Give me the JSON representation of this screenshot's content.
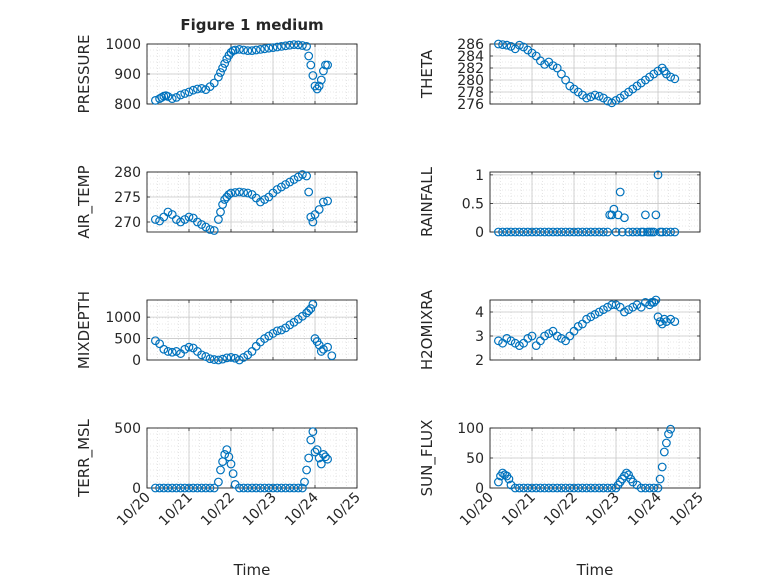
{
  "figure": {
    "title": "Figure 1 medium",
    "xlabel": "Time"
  },
  "x_ticks": [
    "10/20",
    "10/21",
    "10/22",
    "10/23",
    "10/24",
    "10/25"
  ],
  "marker_color": "#0072BD",
  "chart_data": [
    {
      "type": "scatter",
      "ylabel": "PRESSURE",
      "xlim": [
        0,
        5
      ],
      "ylim": [
        800,
        1000
      ],
      "yticks": [
        "800",
        "900",
        "1000"
      ],
      "xtick_labels": false,
      "minor_grid": true,
      "series": [
        {
          "x": [
            0.2,
            0.3,
            0.35,
            0.4,
            0.45,
            0.5,
            0.6,
            0.7,
            0.8,
            0.9,
            1.0,
            1.1,
            1.2,
            1.3,
            1.4,
            1.5,
            1.6,
            1.7,
            1.75,
            1.8,
            1.85,
            1.9,
            1.95,
            2.0,
            2.05,
            2.1,
            2.2,
            2.3,
            2.4,
            2.5,
            2.6,
            2.7,
            2.8,
            2.9,
            3.0,
            3.1,
            3.2,
            3.3,
            3.4,
            3.5,
            3.6,
            3.7,
            3.8,
            3.85,
            3.9,
            3.95,
            4.0,
            4.05,
            4.1,
            4.15,
            4.2,
            4.25,
            4.3
          ],
          "y": [
            812,
            818,
            822,
            826,
            828,
            825,
            818,
            822,
            830,
            835,
            840,
            846,
            850,
            852,
            848,
            858,
            870,
            890,
            905,
            920,
            935,
            950,
            962,
            972,
            978,
            980,
            982,
            980,
            978,
            978,
            980,
            982,
            984,
            986,
            988,
            990,
            992,
            994,
            996,
            998,
            997,
            995,
            992,
            960,
            930,
            895,
            860,
            850,
            860,
            880,
            910,
            930,
            930
          ]
        }
      ]
    },
    {
      "type": "scatter",
      "ylabel": "THETA",
      "xlim": [
        0,
        5
      ],
      "ylim": [
        276,
        286
      ],
      "yticks": [
        "276",
        "278",
        "280",
        "282",
        "284",
        "286"
      ],
      "xtick_labels": false,
      "minor_grid": true,
      "series": [
        {
          "x": [
            0.2,
            0.3,
            0.4,
            0.5,
            0.6,
            0.7,
            0.8,
            0.9,
            1.0,
            1.1,
            1.2,
            1.3,
            1.4,
            1.5,
            1.6,
            1.7,
            1.8,
            1.9,
            2.0,
            2.1,
            2.2,
            2.3,
            2.4,
            2.5,
            2.6,
            2.7,
            2.8,
            2.9,
            3.0,
            3.1,
            3.2,
            3.3,
            3.4,
            3.5,
            3.6,
            3.7,
            3.8,
            3.9,
            4.0,
            4.1,
            4.15,
            4.2,
            4.3,
            4.4
          ],
          "y": [
            286.0,
            285.9,
            285.8,
            285.6,
            285.2,
            285.8,
            285.5,
            285.0,
            284.5,
            284.0,
            283.2,
            282.6,
            283.0,
            282.4,
            282.0,
            281.0,
            280.0,
            279.0,
            278.5,
            278.0,
            277.5,
            277.0,
            277.2,
            277.5,
            277.3,
            277.0,
            276.5,
            276.2,
            276.6,
            277.0,
            277.5,
            278.0,
            278.5,
            279.0,
            279.5,
            280.0,
            280.5,
            281.0,
            281.5,
            282.0,
            281.5,
            281.0,
            280.5,
            280.2
          ]
        }
      ]
    },
    {
      "type": "scatter",
      "ylabel": "AIR_TEMP",
      "xlim": [
        0,
        5
      ],
      "ylim": [
        268,
        280
      ],
      "yticks": [
        "270",
        "275",
        "280"
      ],
      "xtick_labels": false,
      "minor_grid": true,
      "series": [
        {
          "x": [
            0.2,
            0.3,
            0.4,
            0.5,
            0.6,
            0.7,
            0.8,
            0.9,
            1.0,
            1.1,
            1.2,
            1.3,
            1.4,
            1.5,
            1.6,
            1.7,
            1.75,
            1.8,
            1.85,
            1.9,
            1.95,
            2.0,
            2.1,
            2.2,
            2.3,
            2.4,
            2.5,
            2.6,
            2.7,
            2.8,
            2.9,
            3.0,
            3.1,
            3.2,
            3.3,
            3.4,
            3.5,
            3.6,
            3.7,
            3.8,
            3.85,
            3.9,
            3.95,
            4.0,
            4.1,
            4.2,
            4.3
          ],
          "y": [
            270.5,
            270.2,
            271.0,
            272.0,
            271.5,
            270.5,
            270.0,
            270.5,
            271.0,
            270.8,
            270.0,
            269.5,
            269.0,
            268.5,
            268.3,
            270.5,
            272.0,
            273.5,
            274.5,
            275.0,
            275.5,
            275.8,
            275.9,
            276.0,
            275.9,
            275.8,
            275.5,
            274.8,
            274.0,
            274.5,
            275.0,
            275.8,
            276.5,
            277.0,
            277.5,
            278.0,
            278.5,
            279.0,
            279.5,
            279.2,
            276.0,
            271.0,
            270.0,
            271.5,
            272.5,
            274.0,
            274.2
          ]
        }
      ]
    },
    {
      "type": "scatter",
      "ylabel": "RAINFALL",
      "xlim": [
        0,
        5
      ],
      "ylim": [
        0,
        1.05
      ],
      "yticks": [
        "0",
        "0.5",
        "1"
      ],
      "xtick_labels": false,
      "minor_grid": true,
      "series": [
        {
          "x": [
            0.2,
            0.3,
            0.4,
            0.5,
            0.6,
            0.7,
            0.8,
            0.9,
            1.0,
            1.1,
            1.2,
            1.3,
            1.4,
            1.5,
            1.6,
            1.7,
            1.8,
            1.9,
            2.0,
            2.1,
            2.2,
            2.3,
            2.4,
            2.5,
            2.6,
            2.7,
            2.8,
            2.85,
            2.9,
            2.95,
            3.0,
            3.05,
            3.1,
            3.15,
            3.2,
            3.3,
            3.4,
            3.5,
            3.6,
            3.65,
            3.7,
            3.75,
            3.8,
            3.85,
            3.9,
            3.95,
            4.0,
            4.05,
            4.1,
            4.2,
            4.3,
            4.4
          ],
          "y": [
            0,
            0,
            0,
            0,
            0,
            0,
            0,
            0,
            0,
            0,
            0,
            0,
            0,
            0,
            0,
            0,
            0,
            0,
            0,
            0,
            0,
            0,
            0,
            0,
            0,
            0,
            0,
            0.3,
            0.3,
            0.4,
            0,
            0.3,
            0.7,
            0,
            0.25,
            0,
            0,
            0,
            0,
            0,
            0.3,
            0,
            0,
            0,
            0,
            0.3,
            1.0,
            0,
            0,
            0,
            0,
            0
          ]
        }
      ]
    },
    {
      "type": "scatter",
      "ylabel": "MIXDEPTH",
      "xlim": [
        0,
        5
      ],
      "ylim": [
        0,
        1400
      ],
      "yticks": [
        "0",
        "500",
        "1000"
      ],
      "xtick_labels": false,
      "minor_grid": true,
      "series": [
        {
          "x": [
            0.2,
            0.3,
            0.4,
            0.5,
            0.6,
            0.7,
            0.8,
            0.9,
            1.0,
            1.1,
            1.2,
            1.3,
            1.4,
            1.5,
            1.6,
            1.7,
            1.8,
            1.9,
            2.0,
            2.1,
            2.2,
            2.3,
            2.4,
            2.5,
            2.6,
            2.7,
            2.8,
            2.9,
            3.0,
            3.1,
            3.2,
            3.3,
            3.4,
            3.5,
            3.6,
            3.7,
            3.8,
            3.85,
            3.9,
            3.95,
            4.0,
            4.05,
            4.1,
            4.15,
            4.2,
            4.3,
            4.4
          ],
          "y": [
            450,
            380,
            250,
            200,
            180,
            200,
            150,
            250,
            300,
            280,
            200,
            120,
            80,
            30,
            10,
            0,
            20,
            50,
            60,
            40,
            0,
            60,
            120,
            200,
            320,
            420,
            500,
            560,
            620,
            680,
            700,
            750,
            820,
            880,
            950,
            1020,
            1100,
            1150,
            1200,
            1300,
            500,
            430,
            350,
            200,
            250,
            300,
            100
          ]
        }
      ]
    },
    {
      "type": "scatter",
      "ylabel": "H2OMIXRA",
      "xlim": [
        0,
        5
      ],
      "ylim": [
        2,
        4.5
      ],
      "yticks": [
        "2",
        "3",
        "4"
      ],
      "xtick_labels": false,
      "minor_grid": true,
      "series": [
        {
          "x": [
            0.2,
            0.3,
            0.4,
            0.5,
            0.6,
            0.7,
            0.8,
            0.9,
            1.0,
            1.1,
            1.2,
            1.3,
            1.4,
            1.5,
            1.6,
            1.7,
            1.8,
            1.9,
            2.0,
            2.1,
            2.2,
            2.3,
            2.4,
            2.5,
            2.6,
            2.7,
            2.8,
            2.9,
            3.0,
            3.1,
            3.2,
            3.3,
            3.4,
            3.5,
            3.6,
            3.7,
            3.8,
            3.85,
            3.9,
            3.95,
            4.0,
            4.05,
            4.1,
            4.15,
            4.2,
            4.3,
            4.4
          ],
          "y": [
            2.8,
            2.7,
            2.9,
            2.8,
            2.7,
            2.6,
            2.7,
            2.9,
            3.0,
            2.6,
            2.8,
            3.0,
            3.1,
            3.2,
            3.0,
            2.9,
            2.8,
            3.0,
            3.2,
            3.4,
            3.5,
            3.7,
            3.8,
            3.9,
            4.0,
            4.1,
            4.2,
            4.3,
            4.3,
            4.2,
            4.0,
            4.1,
            4.2,
            4.3,
            4.2,
            4.4,
            4.3,
            4.4,
            4.4,
            4.5,
            3.8,
            3.6,
            3.5,
            3.7,
            3.6,
            3.7,
            3.6
          ]
        }
      ]
    },
    {
      "type": "scatter",
      "ylabel": "TERR_MSL",
      "xlim": [
        0,
        5
      ],
      "ylim": [
        0,
        500
      ],
      "yticks": [
        "0",
        "500"
      ],
      "xtick_labels": true,
      "minor_grid": true,
      "series": [
        {
          "x": [
            0.2,
            0.3,
            0.4,
            0.5,
            0.6,
            0.7,
            0.8,
            0.9,
            1.0,
            1.1,
            1.2,
            1.3,
            1.4,
            1.5,
            1.6,
            1.7,
            1.75,
            1.8,
            1.85,
            1.9,
            1.95,
            2.0,
            2.05,
            2.1,
            2.2,
            2.3,
            2.4,
            2.5,
            2.6,
            2.7,
            2.8,
            2.9,
            3.0,
            3.1,
            3.2,
            3.3,
            3.4,
            3.5,
            3.6,
            3.7,
            3.75,
            3.8,
            3.85,
            3.9,
            3.95,
            4.0,
            4.05,
            4.1,
            4.15,
            4.2,
            4.25,
            4.3
          ],
          "y": [
            0,
            0,
            0,
            0,
            0,
            0,
            0,
            0,
            0,
            0,
            0,
            0,
            0,
            0,
            0,
            50,
            150,
            220,
            280,
            320,
            260,
            200,
            120,
            30,
            0,
            0,
            0,
            0,
            0,
            0,
            0,
            0,
            0,
            0,
            0,
            0,
            0,
            0,
            0,
            0,
            50,
            150,
            250,
            400,
            470,
            300,
            320,
            250,
            200,
            280,
            260,
            240
          ]
        }
      ]
    },
    {
      "type": "scatter",
      "ylabel": "SUN_FLUX",
      "xlim": [
        0,
        5
      ],
      "ylim": [
        0,
        100
      ],
      "yticks": [
        "0",
        "50",
        "100"
      ],
      "xtick_labels": true,
      "minor_grid": true,
      "series": [
        {
          "x": [
            0.2,
            0.25,
            0.3,
            0.35,
            0.4,
            0.45,
            0.5,
            0.6,
            0.7,
            0.8,
            0.9,
            1.0,
            1.1,
            1.2,
            1.3,
            1.4,
            1.5,
            1.6,
            1.7,
            1.8,
            1.9,
            2.0,
            2.1,
            2.2,
            2.3,
            2.4,
            2.5,
            2.6,
            2.7,
            2.8,
            2.9,
            3.0,
            3.05,
            3.1,
            3.15,
            3.2,
            3.25,
            3.3,
            3.35,
            3.4,
            3.5,
            3.6,
            3.7,
            3.8,
            3.9,
            4.0,
            4.05,
            4.1,
            4.15,
            4.2,
            4.25,
            4.3
          ],
          "y": [
            10,
            20,
            25,
            22,
            20,
            15,
            5,
            0,
            0,
            0,
            0,
            0,
            0,
            0,
            0,
            0,
            0,
            0,
            0,
            0,
            0,
            0,
            0,
            0,
            0,
            0,
            0,
            0,
            0,
            0,
            0,
            0,
            5,
            10,
            15,
            20,
            25,
            22,
            15,
            10,
            5,
            0,
            0,
            0,
            0,
            0,
            15,
            35,
            60,
            75,
            90,
            98
          ]
        }
      ]
    }
  ]
}
